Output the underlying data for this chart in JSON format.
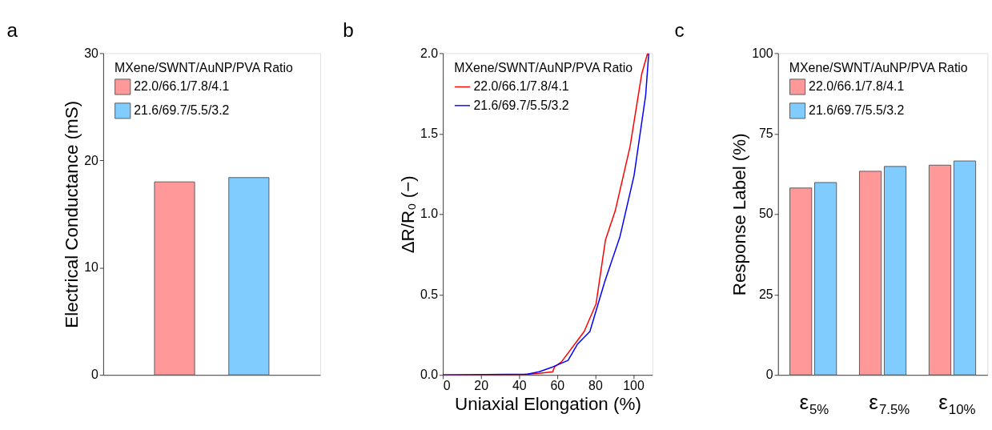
{
  "chart_data": [
    {
      "type": "bar",
      "title": "a",
      "ylabel": "Electrical Conductance (mS)",
      "legend_title": "MXene/SWNT/AuNP/PVA Ratio",
      "legend": "top",
      "tick_labels": "y",
      "categories": [
        null
      ],
      "series": [
        {
          "name": "22.0/66.1/7.8/4.1",
          "color": "#ff9999",
          "values": [
            18.0
          ]
        },
        {
          "name": "21.6/69.7/5.5/3.2",
          "color": "#80ccff",
          "values": [
            18.4
          ]
        }
      ],
      "ylim": [
        0,
        30
      ],
      "yticks": [
        0,
        10,
        20,
        30
      ]
    },
    {
      "type": "line",
      "title": "b",
      "xlabel": "Uniaxial Elongation (%)",
      "ylabel": "ΔR/R₀ (−)",
      "legend_title": "MXene/SWNT/AuNP/PVA Ratio",
      "legend": "top",
      "line_style": "solid",
      "series": [
        {
          "name": "22.0/66.1/7.8/4.1",
          "color": "#ff0000",
          "x": [
            0,
            39.5,
            50.6,
            57.7,
            58.6,
            62.2,
            74.2,
            80.4,
            85.4,
            90.5,
            98.3,
            104.4,
            107.5
          ],
          "values": [
            0,
            0,
            0.01,
            0.02,
            0.05,
            0.08,
            0.27,
            0.44,
            0.84,
            1.02,
            1.42,
            1.87,
            2.0
          ]
        },
        {
          "name": "21.6/69.7/5.5/3.2",
          "color": "#0000ff",
          "x": [
            0,
            44.4,
            50.6,
            57.7,
            65.7,
            70.6,
            77.2,
            85.0,
            93.0,
            100.4,
            106.5,
            108.1
          ],
          "values": [
            0,
            0.005,
            0.02,
            0.05,
            0.09,
            0.19,
            0.27,
            0.58,
            0.86,
            1.24,
            1.74,
            2.0
          ]
        }
      ],
      "xlim": [
        0,
        110
      ],
      "xticks": [
        0,
        20,
        40,
        60,
        80,
        100
      ],
      "ylim": [
        0,
        2
      ],
      "yticks": [
        {
          "value": 0,
          "label": "0.0"
        },
        {
          "value": 0.5,
          "label": "0.5"
        },
        {
          "value": 1,
          "label": "1.0"
        },
        {
          "value": 1.5,
          "label": "1.5"
        },
        {
          "value": 2,
          "label": "2.0"
        }
      ]
    },
    {
      "type": "bar",
      "title": "c",
      "ylabel": "Response Label (%)",
      "legend_title": "MXene/SWNT/AuNP/PVA Ratio",
      "legend": "top",
      "categories": [
        "ε$_{5%}$",
        "ε$_{7.5%}$",
        "ε$_{10%}$"
      ],
      "series": [
        {
          "name": "22.0/66.1/7.8/4.1",
          "color": "#ff9999",
          "values": [
            58.1,
            63.3,
            65.2
          ]
        },
        {
          "name": "21.6/69.7/5.5/3.2",
          "color": "#80ccff",
          "values": [
            59.8,
            64.8,
            66.5
          ]
        }
      ],
      "ylim": [
        0,
        100
      ],
      "yticks": [
        0,
        25,
        50,
        75,
        100
      ]
    }
  ]
}
